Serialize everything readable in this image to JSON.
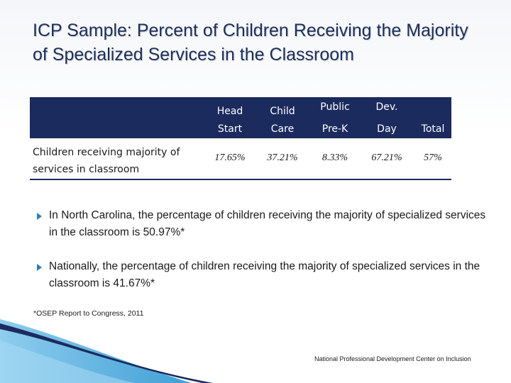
{
  "slide": {
    "title": "ICP Sample: Percent of Children Receiving the Majority of Specialized Services in the Classroom",
    "table": {
      "headers": [
        {
          "line1": "Head",
          "line2": "Start"
        },
        {
          "line1": "Child",
          "line2": "Care"
        },
        {
          "line1": "Public",
          "line2": "Pre-K"
        },
        {
          "line1": "Dev.",
          "line2": "Day"
        },
        {
          "line1": "",
          "line2": "Total"
        }
      ],
      "row": {
        "label": "Children receiving majority of services in classroom",
        "values": [
          "17.65%",
          "37.21%",
          "8.33%",
          "67.21%",
          "57%"
        ]
      }
    },
    "bullets": [
      "In North Carolina, the percentage of children receiving the majority of specialized services in the classroom is 50.97%*",
      "Nationally, the percentage of children receiving the majority of specialized services in the classroom is 41.67%*"
    ],
    "footnote": "*OSEP Report to Congress, 2011",
    "credit": "National Professional Development Center on Inclusion"
  },
  "colors": {
    "title": "#1b2f5c",
    "table_header": "#1b2b5e",
    "bullet_arrow": "#2a7fb5",
    "wave_light": "#5fb3df",
    "wave_dark": "#1b2b5e"
  }
}
